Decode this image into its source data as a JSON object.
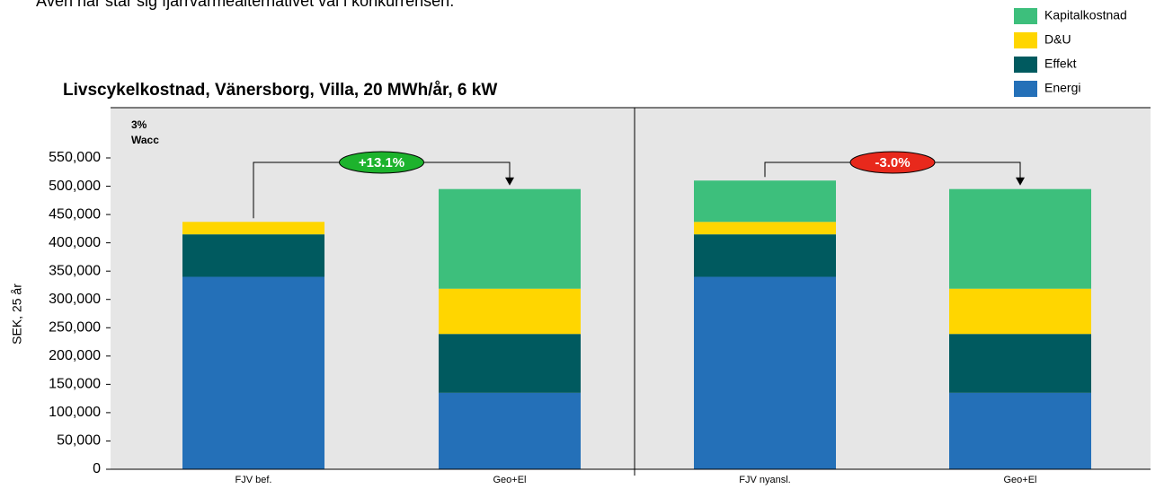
{
  "heading": "Även här står sig fjärrvärmealternativet väl i konkurrensen.",
  "chart_data": {
    "type": "bar",
    "stacked": true,
    "title": "Livscykelkostnad, Vänersborg, Villa, 20 MWh/år, 6 kW",
    "ylabel": "SEK, 25 år",
    "notes": [
      "3%",
      "Wacc"
    ],
    "categories": [
      "FJV bef.",
      "Geo+El",
      "FJV nyansl.",
      "Geo+El"
    ],
    "series": [
      {
        "name": "Energi",
        "color": "#2470b8",
        "values": [
          340000,
          135000,
          340000,
          135000
        ]
      },
      {
        "name": "Effekt",
        "color": "#005a5f",
        "values": [
          75000,
          104000,
          75000,
          104000
        ]
      },
      {
        "name": "D&U",
        "color": "#ffd600",
        "values": [
          22000,
          80000,
          22000,
          80000
        ]
      },
      {
        "name": "Kapitalkostnad",
        "color": "#3dbf7c",
        "values": [
          0,
          176000,
          73000,
          176000
        ]
      }
    ],
    "annotations": [
      {
        "label": "+13.1%",
        "color": "#1db32d"
      },
      {
        "label": "-3.0%",
        "color": "#e8291c"
      }
    ],
    "ylim": [
      0,
      550000
    ],
    "yticks": [
      0,
      {
        "value": 50000,
        "label": "50,000"
      },
      {
        "value": 100000,
        "label": "100,000"
      },
      {
        "value": 150000,
        "label": "150,000"
      },
      {
        "value": 200000,
        "label": "200,000"
      },
      {
        "value": 250000,
        "label": "250,000"
      },
      {
        "value": 300000,
        "label": "300,000"
      },
      {
        "value": 350000,
        "label": "350,000"
      },
      {
        "value": 400000,
        "label": "400,000"
      },
      {
        "value": 450000,
        "label": "450,000"
      },
      {
        "value": 500000,
        "label": "500,000"
      },
      {
        "value": 550000,
        "label": "550,000"
      }
    ],
    "grid": false,
    "legend": "top-right"
  }
}
